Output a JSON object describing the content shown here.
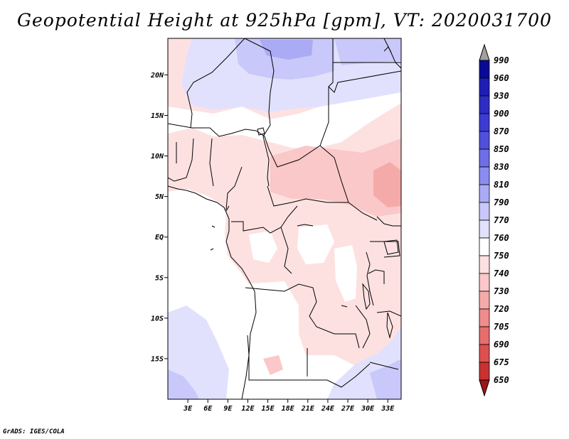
{
  "title": "Geopotential Height at 925hPa [gpm], VT: 2020031700",
  "credit": "GrADS: IGES/COLA",
  "map": {
    "variable": "Geopotential Height",
    "level": "925hPa",
    "units": "gpm",
    "valid_time": "2020031700",
    "region": "Central Africa",
    "lat_labels": [
      "20N",
      "15N",
      "10N",
      "5N",
      "EQ",
      "5S",
      "10S",
      "15S"
    ],
    "lat_values": [
      20,
      15,
      10,
      5,
      0,
      -5,
      -10,
      -15
    ],
    "lon_labels": [
      "3E",
      "6E",
      "9E",
      "12E",
      "15E",
      "18E",
      "21E",
      "24E",
      "27E",
      "30E",
      "33E"
    ],
    "lon_values": [
      3,
      6,
      9,
      12,
      15,
      18,
      21,
      24,
      27,
      30,
      33
    ],
    "lat_range": [
      -20,
      24.5
    ],
    "lon_range": [
      0,
      35
    ]
  },
  "colorbar": {
    "labels": [
      "990",
      "960",
      "930",
      "900",
      "870",
      "850",
      "830",
      "810",
      "790",
      "770",
      "760",
      "750",
      "740",
      "730",
      "720",
      "705",
      "690",
      "675",
      "650"
    ],
    "colors": [
      "#0a0a96",
      "#1e1eb4",
      "#2d2dc3",
      "#3c3cd2",
      "#5050dc",
      "#6e6ee6",
      "#8c8cf0",
      "#aaaaf5",
      "#c8c8fa",
      "#e1e1fd",
      "#ffffff",
      "#fde1e1",
      "#fac8c8",
      "#f5aaaa",
      "#f08c8c",
      "#e66e6e",
      "#dc5050",
      "#c83232",
      "#b41e1e"
    ],
    "over_color": "#a0a0a0",
    "under_color": "#a01414"
  }
}
